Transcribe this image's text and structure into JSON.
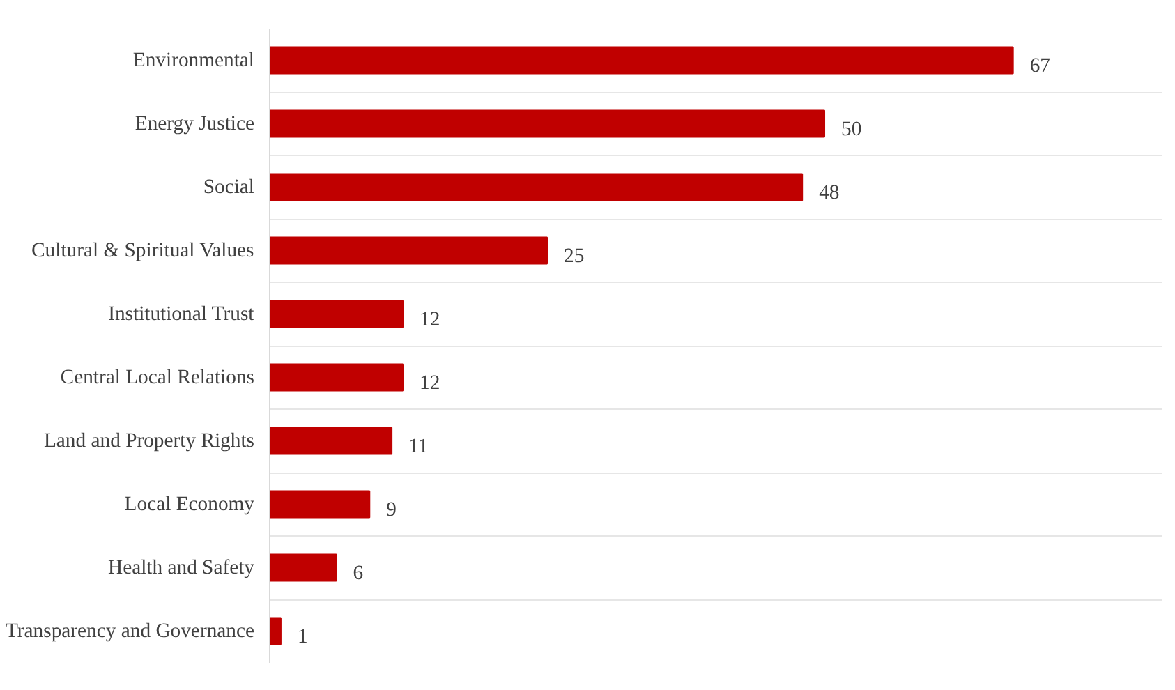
{
  "chart_data": {
    "type": "bar",
    "orientation": "horizontal",
    "categories": [
      "Environmental",
      "Energy Justice",
      "Social",
      "Cultural & Spiritual Values",
      "Institutional Trust",
      "Central Local Relations",
      "Land and Property Rights",
      "Local Economy",
      "Health and Safety",
      "Transparency and Governance"
    ],
    "values": [
      67,
      50,
      48,
      25,
      12,
      12,
      11,
      9,
      6,
      1
    ],
    "color": "#c00000",
    "data_labels": true,
    "grid": "y"
  }
}
